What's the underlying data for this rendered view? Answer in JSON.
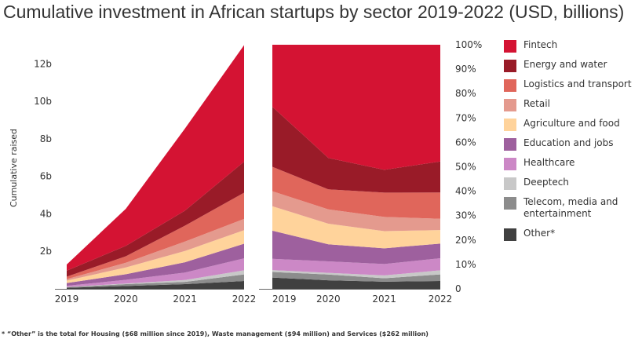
{
  "chart_data": {
    "type": "area",
    "title": "Cumulative investment in African startups by sector 2019-2022 (USD, billions)",
    "ylabel": "Cumulative raised",
    "x": [
      "2019",
      "2020",
      "2021",
      "2022"
    ],
    "left_panel": {
      "mode": "stacked",
      "ylim": [
        0,
        13
      ],
      "yticks": [
        2,
        4,
        6,
        8,
        10,
        12
      ],
      "ytick_labels": [
        "2b",
        "4b",
        "6b",
        "8b",
        "10b",
        "12b"
      ]
    },
    "right_panel": {
      "mode": "percent",
      "ylim": [
        0,
        100
      ],
      "yticks": [
        0,
        10,
        20,
        30,
        40,
        50,
        60,
        70,
        80,
        90,
        100
      ],
      "ytick_labels": [
        "0",
        "10%",
        "20%",
        "30%",
        "40%",
        "50%",
        "60%",
        "70%",
        "80%",
        "90%",
        "100%"
      ]
    },
    "series": [
      {
        "name": "Other*",
        "color": "#404040",
        "values": [
          0.06,
          0.15,
          0.25,
          0.42
        ]
      },
      {
        "name": "Telecom, media and entertainment",
        "color": "#8c8c8c",
        "values": [
          0.03,
          0.1,
          0.12,
          0.35
        ]
      },
      {
        "name": "Deeptech",
        "color": "#c8c8c8",
        "values": [
          0.01,
          0.03,
          0.1,
          0.22
        ]
      },
      {
        "name": "Healthcare",
        "color": "#cc88c6",
        "values": [
          0.06,
          0.2,
          0.4,
          0.64
        ]
      },
      {
        "name": "Education and jobs",
        "color": "#9e609e",
        "values": [
          0.15,
          0.3,
          0.55,
          0.78
        ]
      },
      {
        "name": "Agriculture and food",
        "color": "#ffd39b",
        "values": [
          0.13,
          0.36,
          0.6,
          0.72
        ]
      },
      {
        "name": "Retail",
        "color": "#e49a8e",
        "values": [
          0.08,
          0.25,
          0.5,
          0.6
        ]
      },
      {
        "name": "Logistics and transport",
        "color": "#e0665b",
        "values": [
          0.13,
          0.35,
          0.85,
          1.4
        ]
      },
      {
        "name": "Energy and water",
        "color": "#991b28",
        "values": [
          0.32,
          0.55,
          0.8,
          1.65
        ]
      },
      {
        "name": "Fintech",
        "color": "#d41333",
        "values": [
          0.33,
          1.98,
          4.38,
          6.22
        ]
      }
    ]
  },
  "legend_order": [
    "Fintech",
    "Energy and water",
    "Logistics and transport",
    "Retail",
    "Agriculture and food",
    "Education and jobs",
    "Healthcare",
    "Deeptech",
    "Telecom, media and entertainment",
    "Other*"
  ],
  "footnote": "* “Other” is the total for Housing ($68 million since 2019), Waste management ($94 million) and Services ($262 million)"
}
